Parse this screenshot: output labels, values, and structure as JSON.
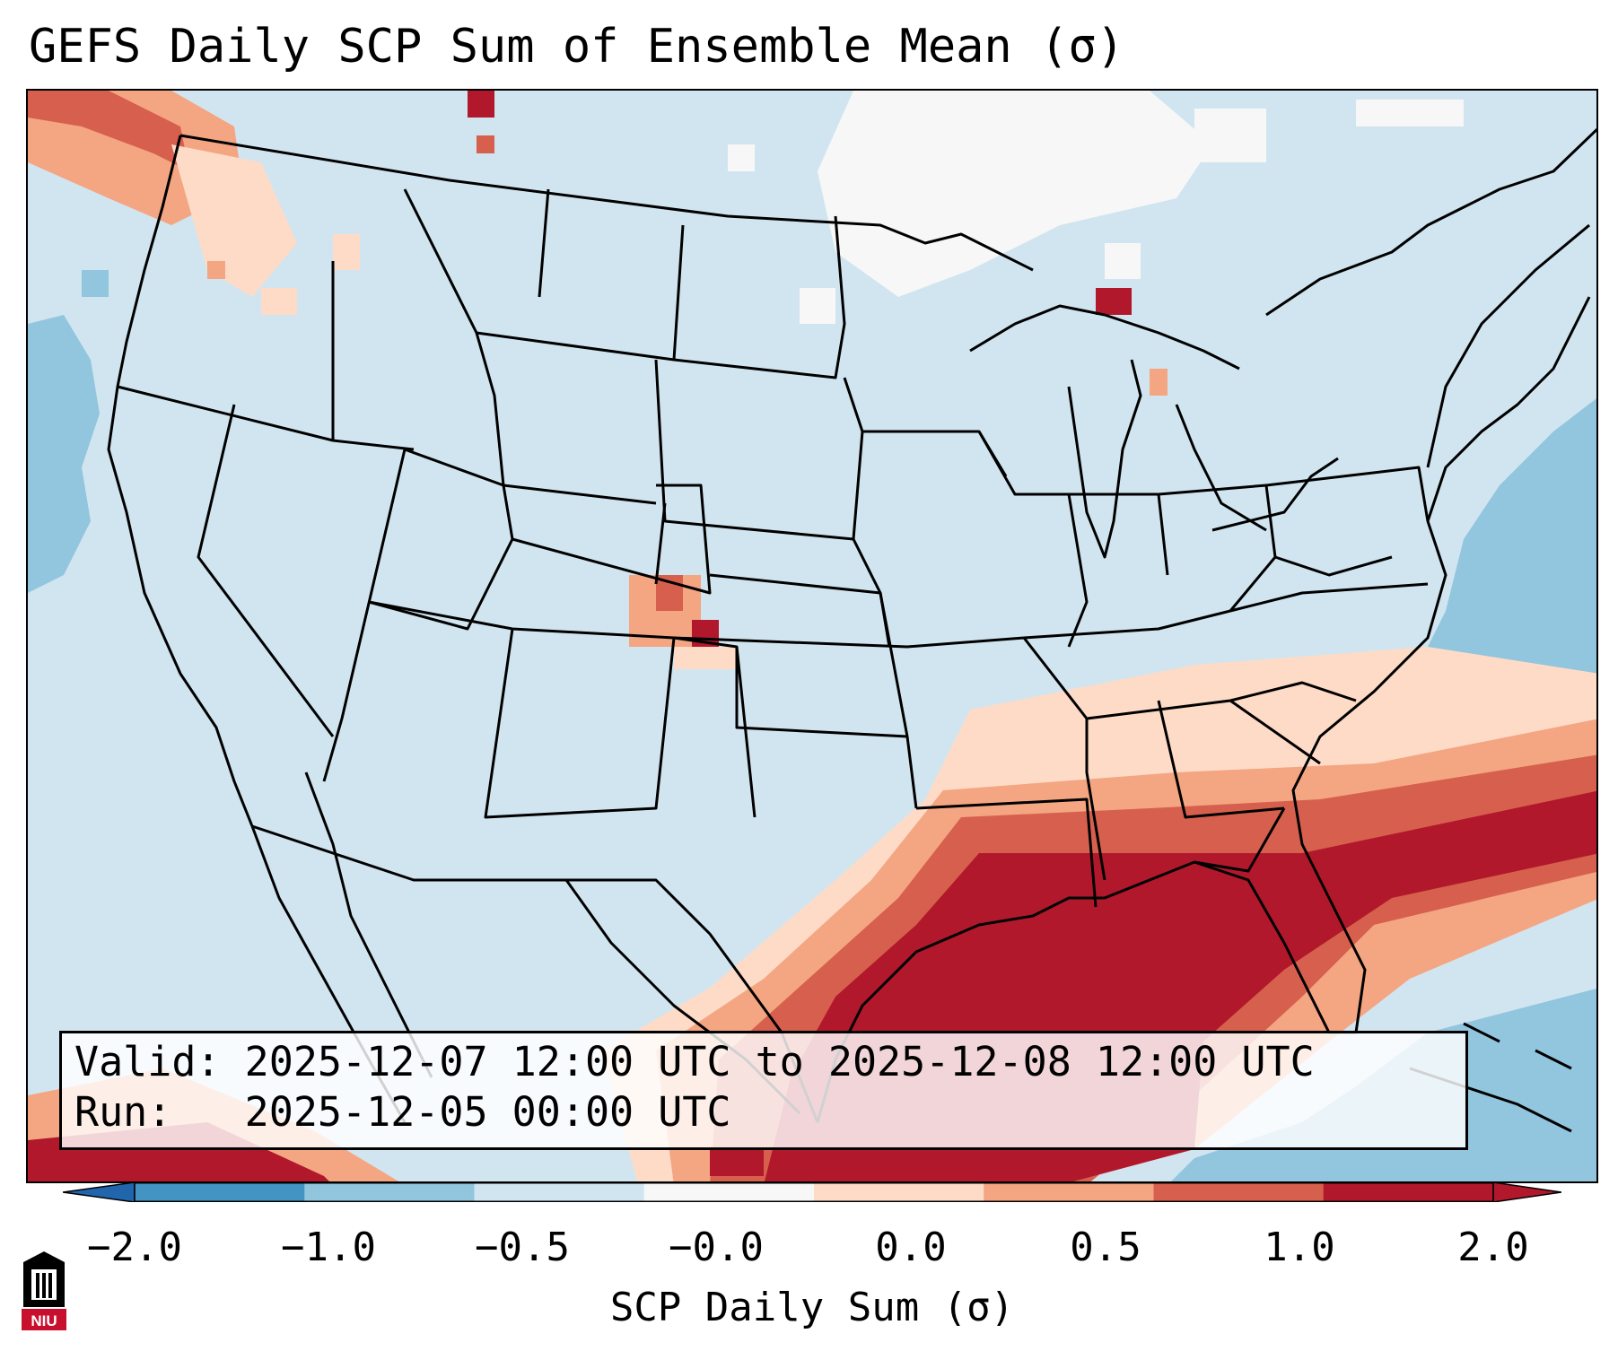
{
  "title": "GEFS Daily SCP Sum of Ensemble Mean (σ)",
  "info_box": {
    "valid_line": "Valid: 2025-12-07 12:00 UTC to 2025-12-08 12:00 UTC",
    "run_line": "Run:   2025-12-05 00:00 UTC"
  },
  "colorbar": {
    "label": "SCP Daily Sum (σ)",
    "ticks": [
      "−2.0",
      "−1.0",
      "−0.5",
      "−0.0",
      "0.0",
      "0.5",
      "1.0",
      "2.0"
    ],
    "colors": [
      "#4393c3",
      "#92c5de",
      "#d1e5f0",
      "#f7f7f7",
      "#fddbc7",
      "#f4a582",
      "#d6604d",
      "#b2182b"
    ],
    "under_color": "#2166ac",
    "over_color": "#b2182b"
  },
  "map": {
    "region": "Continental United States",
    "background_anomaly_color": "#d1e5f0",
    "high_anomaly_region": "Gulf of Mexico and southeastern United States",
    "logo_text": "NIU"
  }
}
